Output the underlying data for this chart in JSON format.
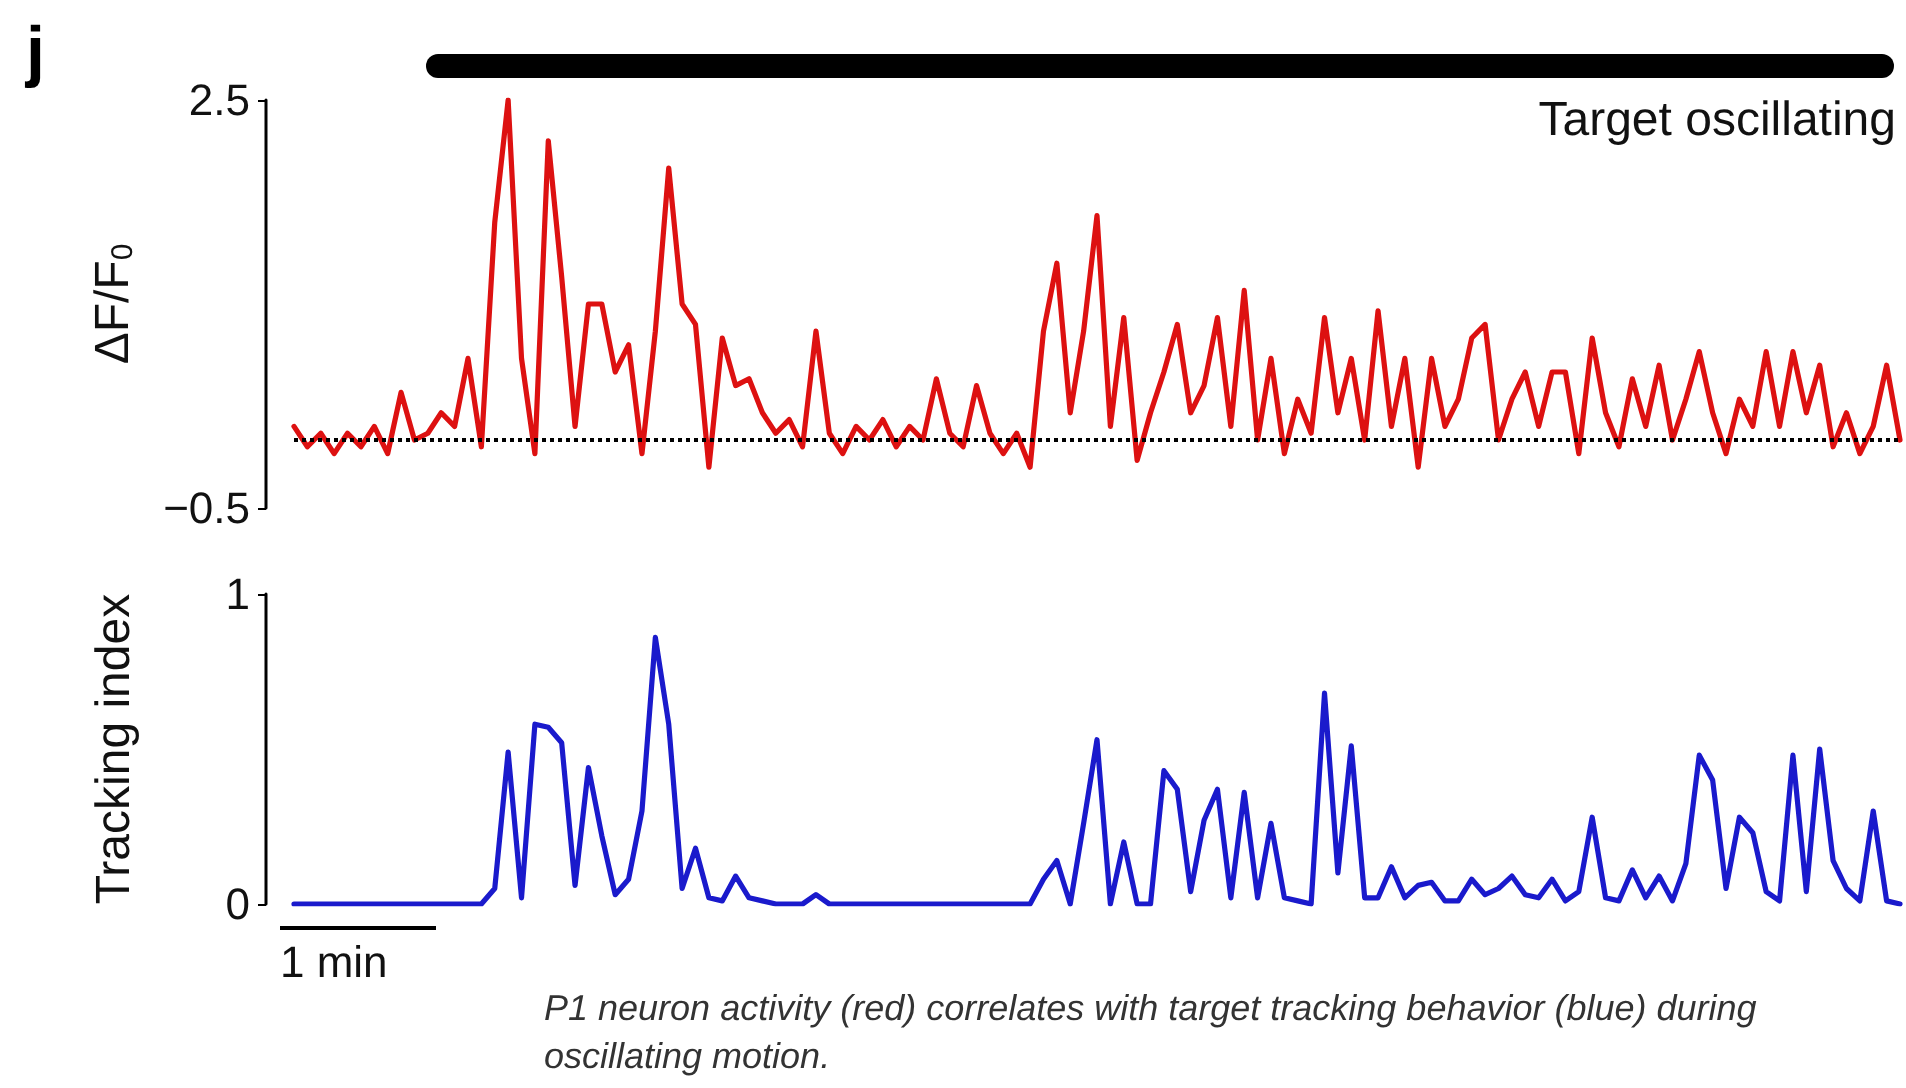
{
  "chart_data": [
    {
      "type": "line",
      "title": "j",
      "ylabel": "ΔF/F$_{0}$",
      "annotations": [
        "Target oscillating"
      ],
      "line_style": "solid",
      "tick_labels": "y",
      "grid": false,
      "categories": [
        null,
        null,
        null,
        null,
        null,
        null,
        null,
        null,
        null,
        null,
        null,
        null,
        null,
        null,
        null,
        null,
        null,
        null,
        null,
        null,
        null,
        null,
        null,
        null,
        null,
        null,
        null,
        null,
        null,
        null,
        null,
        null,
        null,
        null,
        null,
        null,
        null,
        null,
        null,
        null,
        null,
        null,
        null,
        null,
        null,
        null,
        null,
        null,
        null,
        null,
        null,
        null,
        null,
        null,
        null,
        null,
        null,
        null,
        null,
        null,
        null,
        null,
        null,
        null,
        null,
        null,
        null,
        null,
        null,
        null,
        null,
        null,
        null,
        null,
        null,
        null,
        null,
        null,
        null,
        null,
        null,
        null,
        null,
        null,
        null,
        null,
        null,
        null,
        null,
        null,
        null,
        null,
        null,
        null,
        null,
        null,
        null,
        null,
        null,
        null,
        null,
        null,
        null,
        null,
        null,
        null,
        null,
        null,
        null,
        null,
        null,
        null,
        null,
        null,
        null,
        null,
        null,
        null,
        null,
        null,
        null
      ],
      "ylim": [
        -0.5,
        2.5
      ],
      "yticks": [
        2.5,
        {
          "value": -0.5,
          "label": "−0.5"
        }
      ],
      "ref_lines": [
        {
          "axis": "y",
          "value": 0,
          "color": "#000000",
          "line_style": "dotted"
        }
      ],
      "series": [
        {
          "color": "#dd1111",
          "values": [
            0.1,
            -0.05,
            0.05,
            -0.1,
            0.05,
            -0.05,
            0.1,
            -0.1,
            0.35,
            0,
            0.05,
            0.2,
            0.1,
            0.6,
            -0.05,
            1.6,
            2.5,
            0.6,
            -0.1,
            2.2,
            1.2,
            0.1,
            1.0,
            1.0,
            0.5,
            0.7,
            -0.1,
            0.8,
            2.0,
            1.0,
            0.85,
            -0.2,
            0.75,
            0.4,
            0.45,
            0.2,
            0.05,
            0.15,
            -0.05,
            0.8,
            0.05,
            -0.1,
            0.1,
            0,
            0.15,
            -0.05,
            0.1,
            0,
            0.45,
            0.05,
            -0.05,
            0.4,
            0.05,
            -0.1,
            0.05,
            -0.2,
            0.8,
            1.3,
            0.2,
            0.8,
            1.65,
            0.1,
            0.9,
            -0.15,
            0.2,
            0.5,
            0.85,
            0.2,
            0.4,
            0.9,
            0.1,
            1.1,
            0,
            0.6,
            -0.1,
            0.3,
            0.05,
            0.9,
            0.2,
            0.6,
            0,
            0.95,
            0.1,
            0.6,
            -0.2,
            0.6,
            0.1,
            0.3,
            0.75,
            0.85,
            0,
            0.3,
            0.5,
            0.1,
            0.5,
            0.5,
            -0.1,
            0.75,
            0.2,
            -0.05,
            0.45,
            0.1,
            0.55,
            0,
            0.3,
            0.65,
            0.2,
            -0.1,
            0.3,
            0.1,
            0.65,
            0.1,
            0.65,
            0.2,
            0.55,
            -0.05,
            0.2,
            -0.1,
            0.1,
            0.55,
            0
          ]
        }
      ]
    },
    {
      "type": "line",
      "ylabel": "Tracking index",
      "annotations": [
        "1 min",
        "P1 neuron activity (red) correlates with target tracking behavior (blue) during oscillating motion."
      ],
      "line_style": "solid",
      "tick_labels": "y",
      "grid": false,
      "categories": [
        null,
        null,
        null,
        null,
        null,
        null,
        null,
        null,
        null,
        null,
        null,
        null,
        null,
        null,
        null,
        null,
        null,
        null,
        null,
        null,
        null,
        null,
        null,
        null,
        null,
        null,
        null,
        null,
        null,
        null,
        null,
        null,
        null,
        null,
        null,
        null,
        null,
        null,
        null,
        null,
        null,
        null,
        null,
        null,
        null,
        null,
        null,
        null,
        null,
        null,
        null,
        null,
        null,
        null,
        null,
        null,
        null,
        null,
        null,
        null,
        null,
        null,
        null,
        null,
        null,
        null,
        null,
        null,
        null,
        null,
        null,
        null,
        null,
        null,
        null,
        null,
        null,
        null,
        null,
        null,
        null,
        null,
        null,
        null,
        null,
        null,
        null,
        null,
        null,
        null,
        null,
        null,
        null,
        null,
        null,
        null,
        null,
        null,
        null,
        null,
        null,
        null,
        null,
        null,
        null,
        null,
        null,
        null,
        null,
        null,
        null,
        null,
        null,
        null,
        null,
        null,
        null,
        null,
        null,
        null,
        null
      ],
      "ylim": [
        0,
        1
      ],
      "yticks": [
        0,
        1
      ],
      "series": [
        {
          "color": "#1a1acc",
          "values": [
            0,
            0,
            0,
            0,
            0,
            0,
            0,
            0,
            0,
            0,
            0,
            0,
            0,
            0,
            0,
            0.05,
            0.49,
            0.02,
            0.58,
            0.57,
            0.52,
            0.06,
            0.44,
            0.22,
            0.03,
            0.08,
            0.3,
            0.86,
            0.58,
            0.05,
            0.18,
            0.02,
            0.01,
            0.09,
            0.02,
            0.01,
            0,
            0,
            0,
            0.03,
            0,
            0,
            0,
            0,
            0,
            0,
            0,
            0,
            0,
            0,
            0,
            0,
            0,
            0,
            0,
            0,
            0.08,
            0.14,
            0,
            0.26,
            0.53,
            0,
            0.2,
            0,
            0,
            0.43,
            0.37,
            0.04,
            0.27,
            0.37,
            0.02,
            0.36,
            0.02,
            0.26,
            0.02,
            0.01,
            0,
            0.68,
            0.1,
            0.51,
            0.02,
            0.02,
            0.12,
            0.02,
            0.06,
            0.07,
            0.01,
            0.01,
            0.08,
            0.03,
            0.05,
            0.09,
            0.03,
            0.02,
            0.08,
            0.01,
            0.04,
            0.28,
            0.02,
            0.01,
            0.11,
            0.02,
            0.09,
            0.01,
            0.13,
            0.48,
            0.4,
            0.05,
            0.28,
            0.23,
            0.04,
            0.01,
            0.48,
            0.04,
            0.5,
            0.14,
            0.05,
            0.01,
            0.3,
            0.01,
            0
          ]
        }
      ]
    }
  ]
}
